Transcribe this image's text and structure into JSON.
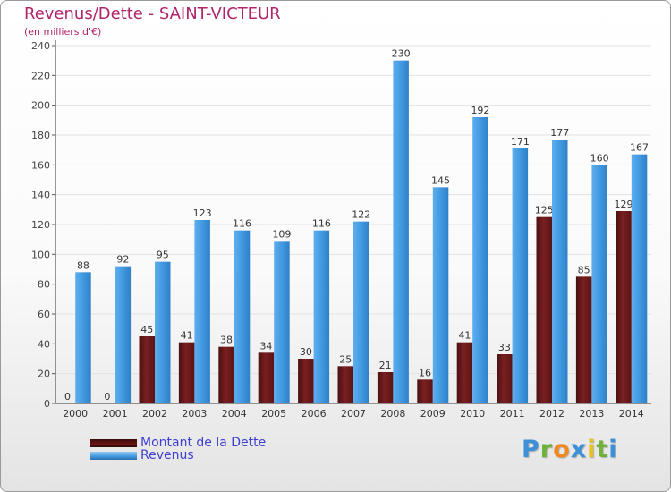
{
  "title": "Revenus/Dette - SAINT-VICTEUR",
  "subtitle": "(en milliers d'€)",
  "colors": {
    "title": "#b0246b",
    "dette": "#7a1f22",
    "revenus": "#3f97dd",
    "legend_text": "#4040d0"
  },
  "legend": [
    {
      "label": "Montant de la Dette",
      "color": "#6b1414"
    },
    {
      "label": "Revenus",
      "color": "#3f97dd"
    }
  ],
  "logo": {
    "text": "Proxiti"
  },
  "chart_data": {
    "type": "bar",
    "categories": [
      "2000",
      "2001",
      "2002",
      "2003",
      "2004",
      "2005",
      "2006",
      "2007",
      "2008",
      "2009",
      "2010",
      "2011",
      "2012",
      "2013",
      "2014"
    ],
    "series": [
      {
        "name": "Montant de la Dette",
        "values": [
          0,
          0,
          45,
          41,
          38,
          34,
          30,
          25,
          21,
          16,
          41,
          33,
          125,
          85,
          129
        ]
      },
      {
        "name": "Revenus",
        "values": [
          88,
          92,
          95,
          123,
          116,
          109,
          116,
          122,
          230,
          145,
          192,
          171,
          177,
          160,
          167
        ]
      }
    ],
    "y_ticks": [
      0,
      20,
      40,
      60,
      80,
      100,
      120,
      140,
      160,
      180,
      200,
      220,
      240
    ],
    "ylim": [
      0,
      240
    ],
    "grid": true,
    "legend_position": "bottom-left"
  }
}
